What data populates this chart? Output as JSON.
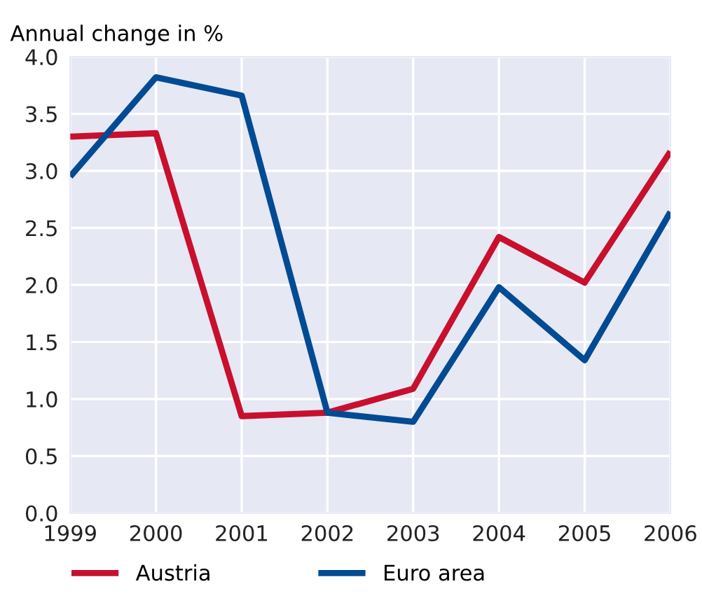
{
  "chart_data": {
    "type": "line",
    "ylabel": "Annual change in %",
    "x": [
      1999,
      2000,
      2001,
      2002,
      2003,
      2004,
      2005,
      2006
    ],
    "series": [
      {
        "name": "Austria",
        "color": "#c8102e",
        "values": [
          3.3,
          3.33,
          0.85,
          0.88,
          1.09,
          2.42,
          2.02,
          3.17
        ]
      },
      {
        "name": "Euro area",
        "color": "#004b93",
        "values": [
          2.95,
          3.82,
          3.66,
          0.88,
          0.8,
          1.98,
          1.34,
          2.64
        ]
      }
    ],
    "xlim": [
      1999,
      2006
    ],
    "xticks": [
      1999,
      2000,
      2001,
      2002,
      2003,
      2004,
      2005,
      2006
    ],
    "ylim": [
      0,
      4.0
    ],
    "yticks": [
      {
        "value": 0,
        "label": "0.0"
      },
      {
        "value": 0.5,
        "label": "0.5"
      },
      {
        "value": 1.0,
        "label": "1.0"
      },
      {
        "value": 1.5,
        "label": "1.5"
      },
      {
        "value": 2.0,
        "label": "2.0"
      },
      {
        "value": 2.5,
        "label": "2.5"
      },
      {
        "value": 3.0,
        "label": "3.0"
      },
      {
        "value": 3.5,
        "label": "3.5"
      },
      {
        "value": 4.0,
        "label": "4.0"
      }
    ],
    "grid": true,
    "legend": "bottom left",
    "marker": "none",
    "line_style": "solid"
  }
}
